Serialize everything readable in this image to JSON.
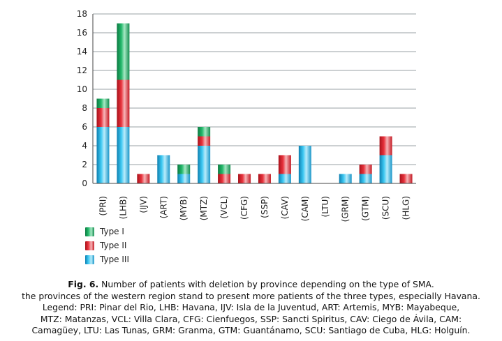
{
  "chart_data": {
    "type": "bar",
    "stacked": true,
    "categories": [
      "(PRI)",
      "(LHB)",
      "(IJV)",
      "(ART)",
      "(MYB)",
      "(MTZ)",
      "(VCL)",
      "(CFG)",
      "(SSP)",
      "(CAV)",
      "(CAM)",
      "(LTU)",
      "(GRM)",
      "(GTM)",
      "(SCU)",
      "(HLG)"
    ],
    "series": [
      {
        "name": "Type III",
        "color": "#1ea6d8",
        "values": [
          6,
          6,
          0,
          3,
          1,
          4,
          0,
          0,
          0,
          1,
          4,
          0,
          1,
          1,
          3,
          0
        ]
      },
      {
        "name": "Type II",
        "color": "#d8202a",
        "values": [
          2,
          5,
          1,
          0,
          0,
          1,
          1,
          1,
          1,
          2,
          0,
          0,
          0,
          1,
          2,
          1
        ]
      },
      {
        "name": "Type I",
        "color": "#16a05a",
        "values": [
          1,
          6,
          0,
          0,
          1,
          1,
          1,
          0,
          0,
          0,
          0,
          0,
          0,
          0,
          0,
          0
        ]
      }
    ],
    "yticks": [
      "0",
      "2",
      "4",
      "6",
      "8",
      "10",
      "12",
      "14",
      "16",
      "18"
    ],
    "ylim": [
      0,
      18
    ],
    "grid": true,
    "legend_position": "bottom-left",
    "legend": [
      {
        "label": "Type I",
        "color": "#16a05a"
      },
      {
        "label": "Type II",
        "color": "#d8202a"
      },
      {
        "label": "Type III",
        "color": "#1ea6d8"
      }
    ]
  },
  "caption": {
    "fig_label": "Fig. 6.",
    "line1": "Number of patients with deletion by province depending on the type of SMA.",
    "line2": "the provinces of the western region stand to present more patients of the three types, especially Havana.",
    "line3": "Legend: PRI: Pinar del Rio, LHB: Havana, IJV: Isla de la Juventud, ART: Artemis, MYB: Mayabeque,",
    "line4": "MTZ: Matanzas, VCL: Villa Clara, CFG: Cienfuegos, SSP: Sancti Spiritus, CAV: Ciego de Ávila, CAM:",
    "line5": "Camagüey, LTU: Las Tunas, GRM: Granma, GTM: Guantánamo, SCU: Santiago de Cuba, HLG: Holguín."
  }
}
